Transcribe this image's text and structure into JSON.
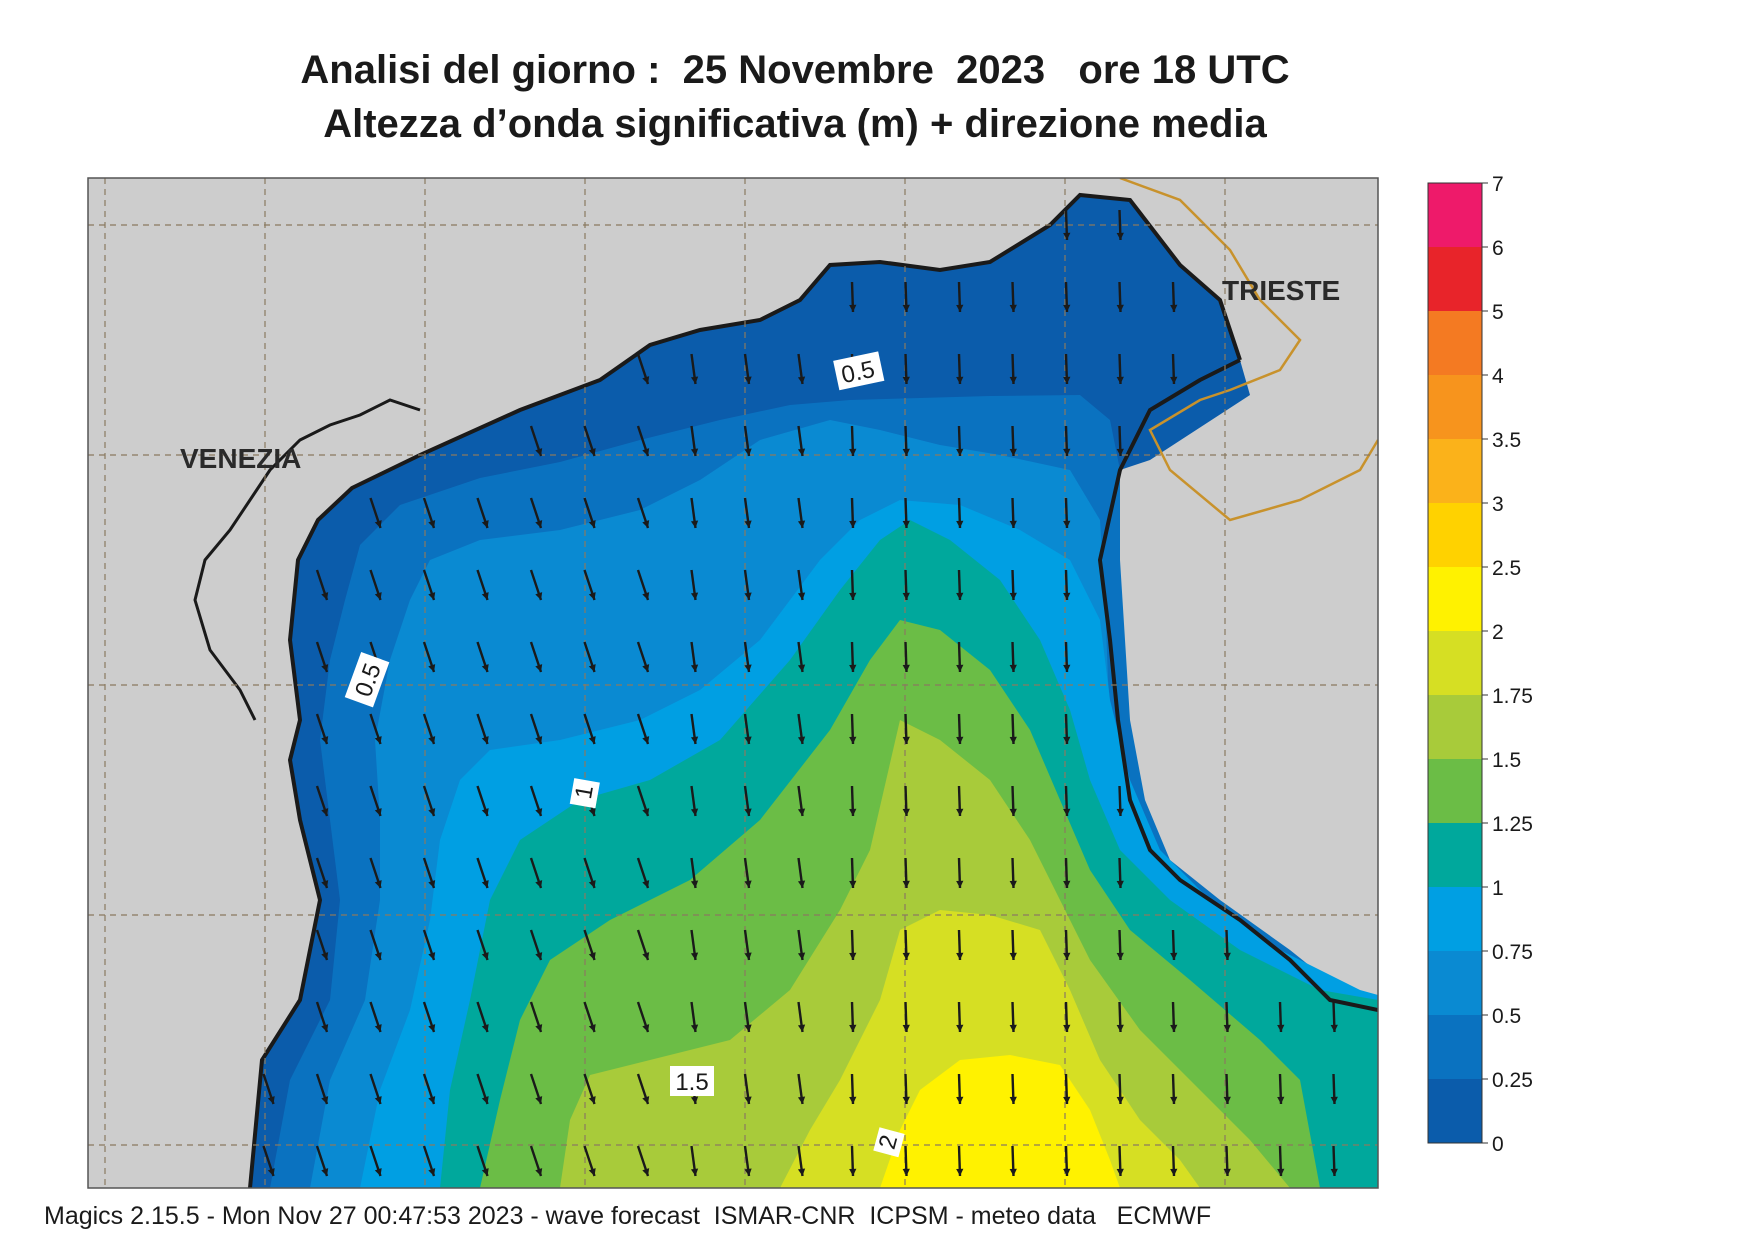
{
  "title": {
    "line1": "Analisi del giorno :  25 Novembre  2023   ore 18 UTC",
    "line2": "Altezza d’onda significativa (m) + direzione media"
  },
  "map": {
    "place_labels": [
      "VENEZIA",
      "TRIESTE"
    ],
    "contour_labels": [
      "0.5",
      "0.5",
      "1",
      "1.5",
      "2"
    ],
    "arrow_direction": "south-south-east"
  },
  "legend": {
    "ticks": [
      "7",
      "6",
      "5",
      "4",
      "3.5",
      "3",
      "2.5",
      "2",
      "1.75",
      "1.5",
      "1.25",
      "1",
      "0.75",
      "0.5",
      "0.25",
      "0"
    ],
    "colors": [
      "#ee1a6a",
      "#e8242a",
      "#f47a22",
      "#f7941d",
      "#fbb21a",
      "#ffd200",
      "#fff200",
      "#d6df23",
      "#a8cb3a",
      "#6bbd46",
      "#00a89c",
      "#009fe3",
      "#0a8ad2",
      "#0a72c0",
      "#0b5cab"
    ]
  },
  "colors": {
    "land": "#cdcdcd",
    "coast": "#1a1a1a",
    "border": "#c8922c",
    "grid": "#8a7a60"
  },
  "footer": "Magics 2.15.5 - Mon Nov 27 00:47:53 2023 - wave forecast  ISMAR-CNR  ICPSM - meteo data   ECMWF"
}
